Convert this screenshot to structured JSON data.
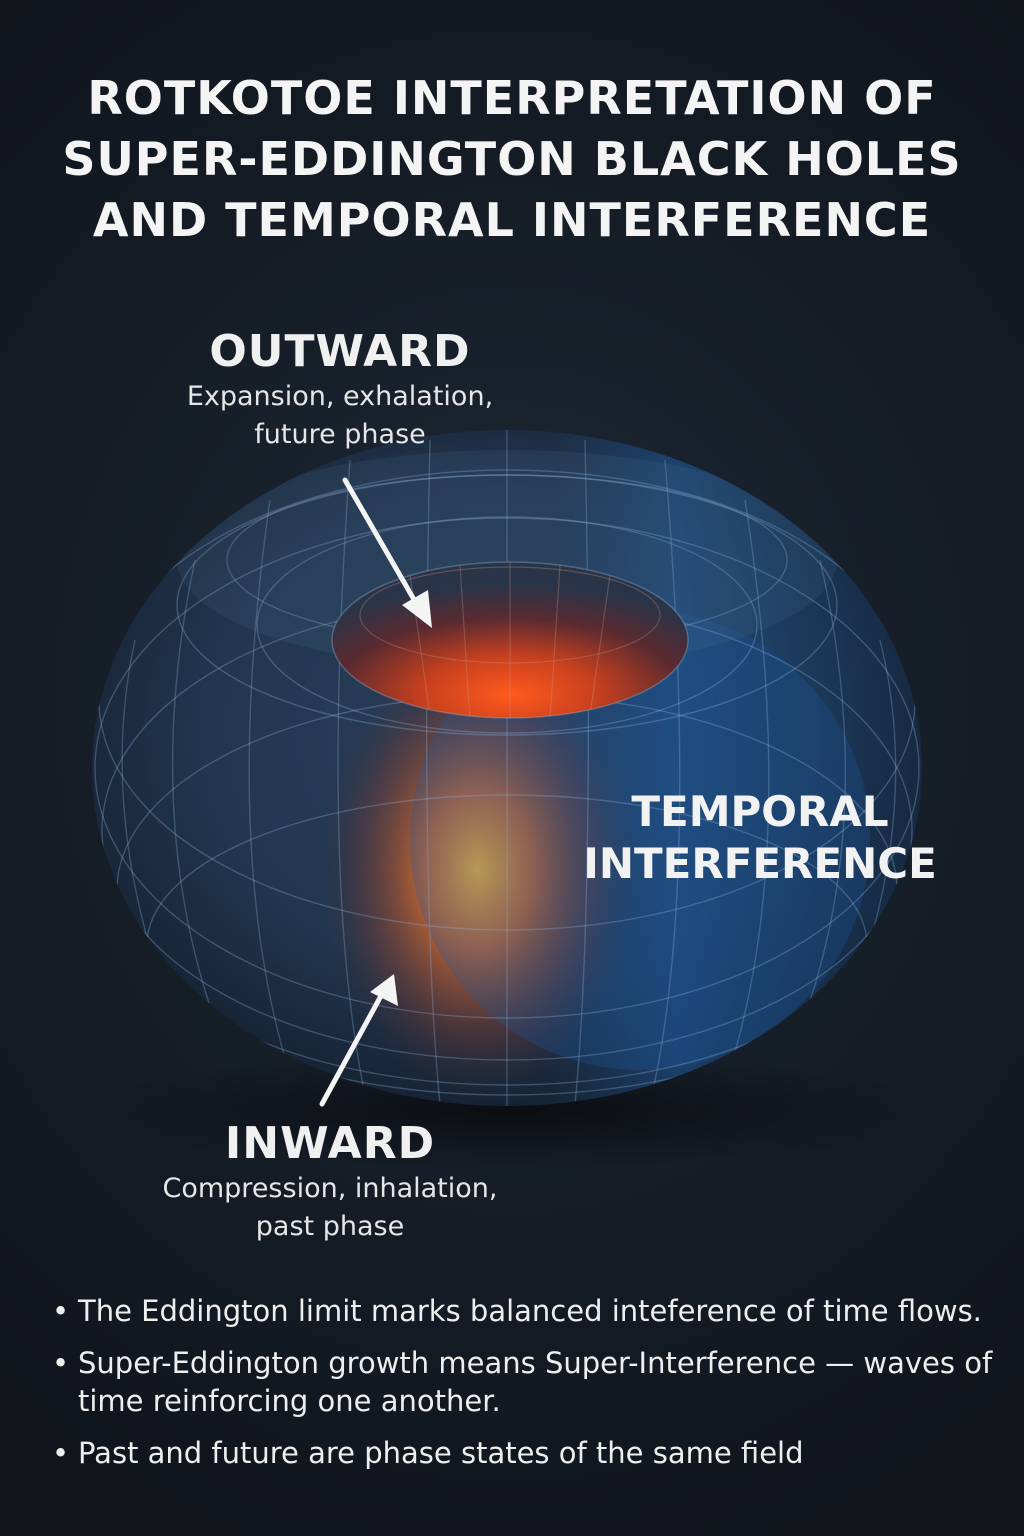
{
  "title": {
    "lines": [
      "ROTKOTOE INTERPRETATION OF",
      "SUPER-EDDINGTON BLACK HOLES",
      "AND TEMPORAL INTERFERENCE"
    ]
  },
  "outward": {
    "heading": "OUTWARD",
    "line1": "Expansion, exhalation,",
    "line2": "future phase"
  },
  "inward": {
    "heading": "INWARD",
    "line1": "Compression, inhalation,",
    "line2": "past phase"
  },
  "temporal": {
    "line1": "TEMPORAL",
    "line2": "INTERFERENCE"
  },
  "bullets": [
    "The Eddington limit marks balanced inteference of time flows.",
    "Super-Eddington growth means Super-Interference — waves of time reinforcing one another.",
    "Past and future are phase states of the same field"
  ],
  "colors": {
    "background": "#161d27",
    "torus_blue": "#1c3a5e",
    "hot_core": "#ff4a1a",
    "warm_band": "#f0a030",
    "text": "#f2f2f2"
  },
  "icons": [
    "arrow-down-icon",
    "arrow-up-icon"
  ]
}
